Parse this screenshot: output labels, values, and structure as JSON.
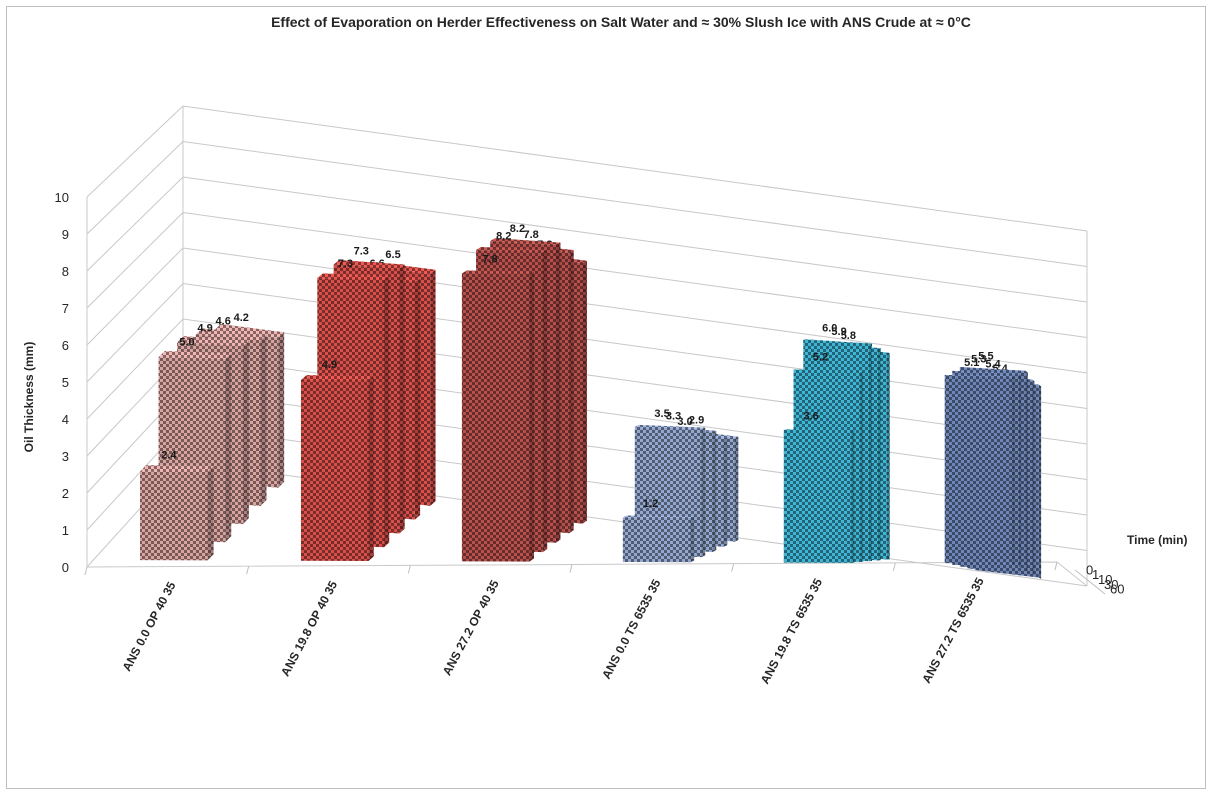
{
  "chart_data": {
    "type": "bar",
    "title": "Effect of Evaporation on Herder Effectiveness on Salt Water and  ≈ 30% Slush Ice with ANS Crude at ≈  0°C",
    "ylabel": "Oil Thickness (mm)",
    "zlabel": "Time (min)",
    "ylim": [
      0,
      10
    ],
    "y_ticks": [
      "0",
      "1",
      "2",
      "3",
      "4",
      "5",
      "6",
      "7",
      "8",
      "9",
      "10"
    ],
    "categories": [
      "ANS 0.0 OP 40 35",
      "ANS 19.8 OP 40 35",
      "ANS 27.2 OP 40 35",
      "ANS 0.0 TS 6535 35",
      "ANS 19.8 TS 6535 35",
      "ANS 27.2 TS 6535 35"
    ],
    "depth_labels": [
      "0",
      "1",
      "10",
      "30",
      "60"
    ],
    "series": [
      {
        "name": "0",
        "values": [
          2.4,
          4.9,
          7.8,
          1.2,
          3.6,
          5.1
        ]
      },
      {
        "name": "1",
        "values": [
          5.0,
          7.3,
          8.2,
          3.5,
          5.2,
          5.3
        ]
      },
      {
        "name": "10",
        "values": [
          4.9,
          7.3,
          8.2,
          3.3,
          6.0,
          5.5
        ]
      },
      {
        "name": "30",
        "values": [
          4.6,
          6.6,
          7.8,
          3.0,
          5.9,
          5.4
        ]
      },
      {
        "name": "60",
        "values": [
          4.2,
          6.5,
          7.3,
          2.9,
          5.8,
          5.4
        ]
      }
    ],
    "grid": true,
    "colors": [
      "#d9a3a0",
      "#d9504a",
      "#b8504d",
      "#93a8d0",
      "#3fb6d6",
      "#6f87b8"
    ]
  }
}
